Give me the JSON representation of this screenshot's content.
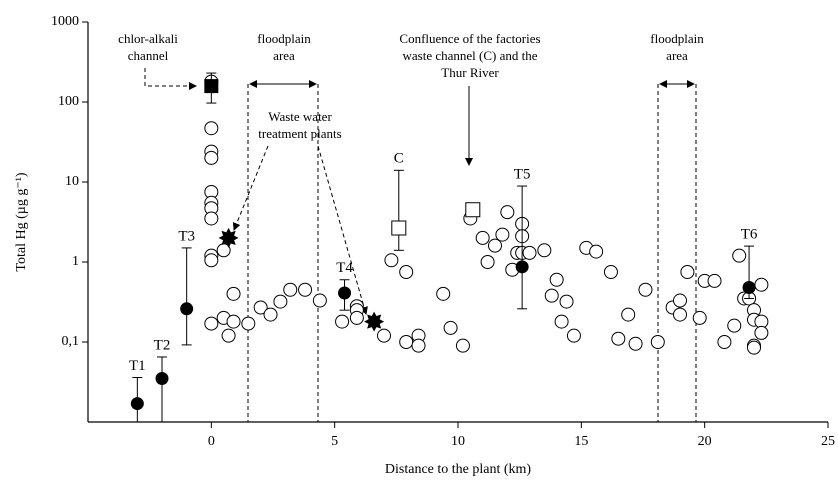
{
  "chart_data": {
    "type": "scatter",
    "xlabel": "Distance to the plant (km)",
    "ylabel": "Total Hg (µg g⁻¹)",
    "xlim": [
      -5,
      25
    ],
    "xticks": [
      0,
      5,
      10,
      15,
      20,
      25
    ],
    "ylim": [
      0.01,
      1000
    ],
    "yticks": [
      1000,
      100,
      10,
      1,
      {
        "value": 0.1,
        "label": "0,1"
      }
    ],
    "log_y": true,
    "series": [
      {
        "marker": "circle-open",
        "x": [
          0,
          0,
          0,
          0,
          0,
          0,
          0,
          0,
          0,
          0,
          0,
          0.5,
          0.5,
          0.7,
          0.9,
          0.9,
          1.5,
          2,
          2.4,
          2.8,
          3.2,
          3.8,
          4.4,
          5.3,
          5.9,
          5.9,
          5.9,
          7.0,
          7.3,
          7.9,
          7.9,
          8.4,
          8.4,
          9.4,
          9.7,
          10.2,
          10.5,
          11.0,
          11.2,
          11.5,
          11.8,
          12.0,
          12.2,
          12.4,
          12.6,
          12.6,
          12.6,
          12.9,
          13.5,
          13.8,
          14.0,
          14.2,
          14.4,
          14.7,
          15.2,
          15.6,
          16.2,
          16.5,
          16.9,
          17.2,
          17.6,
          18.1,
          18.7,
          19.0,
          19.0,
          19.3,
          19.8,
          20.0,
          20.4,
          20.8,
          21.2,
          21.4,
          21.6,
          21.8,
          22.0,
          22.0,
          22.0,
          22.0,
          22.3,
          22.3,
          22.3
        ],
        "values": [
          180,
          47,
          24,
          20,
          7.5,
          5.5,
          4.7,
          3.5,
          1.2,
          1.05,
          0.17,
          0.2,
          1.4,
          0.12,
          0.4,
          0.18,
          0.17,
          0.27,
          0.22,
          0.32,
          0.45,
          0.45,
          0.33,
          0.18,
          0.28,
          0.25,
          0.2,
          0.12,
          1.05,
          0.75,
          0.1,
          0.12,
          0.09,
          0.4,
          0.15,
          0.09,
          3.5,
          2.0,
          1.0,
          1.6,
          2.2,
          4.2,
          0.8,
          1.3,
          3.0,
          2.1,
          1.3,
          1.3,
          1.4,
          0.38,
          0.6,
          0.18,
          0.32,
          0.12,
          1.5,
          1.35,
          0.75,
          0.11,
          0.22,
          0.095,
          0.45,
          0.1,
          0.27,
          0.33,
          0.22,
          0.75,
          0.2,
          0.58,
          0.58,
          0.1,
          0.16,
          1.2,
          0.35,
          0.35,
          0.25,
          0.19,
          0.09,
          0.085,
          0.52,
          0.18,
          0.13
        ]
      },
      {
        "marker": "circle-filled",
        "labels": [
          "T1",
          "T2",
          "T3",
          "T4",
          "T5",
          "T6"
        ],
        "x": [
          -3,
          -2,
          -1,
          5.4,
          12.6,
          21.8
        ],
        "values": [
          0.017,
          0.035,
          0.26,
          0.41,
          0.87,
          0.48
        ],
        "error_upper": [
          0.036,
          0.065,
          1.5,
          0.6,
          8.9,
          1.58
        ],
        "error_lower": [
          null,
          null,
          0.092,
          0.25,
          0.26,
          0.35
        ]
      },
      {
        "marker": "square-filled",
        "x": [
          0
        ],
        "values": [
          158
        ],
        "error_upper": [
          230
        ],
        "error_lower": [
          97
        ]
      },
      {
        "marker": "square-open",
        "labels": [
          "C",
          null
        ],
        "x": [
          7.6,
          10.6
        ],
        "values": [
          2.66,
          4.5
        ],
        "error_upper": [
          14,
          null
        ],
        "error_lower": [
          1.4,
          null
        ]
      },
      {
        "marker": "star",
        "x": [
          0.7,
          6.6
        ],
        "values": [
          2.0,
          0.18
        ]
      }
    ],
    "annotations": {
      "chlor_alkali": [
        "chlor-alkali",
        "channel"
      ],
      "floodplain_left": [
        "floodplain",
        "area"
      ],
      "confluence": [
        "Confluence of the factories",
        "waste channel (C) and the",
        "Thur River"
      ],
      "floodplain_right": [
        "floodplain",
        "area"
      ],
      "wwtp": [
        "Waste water",
        "treatment plants"
      ]
    }
  }
}
